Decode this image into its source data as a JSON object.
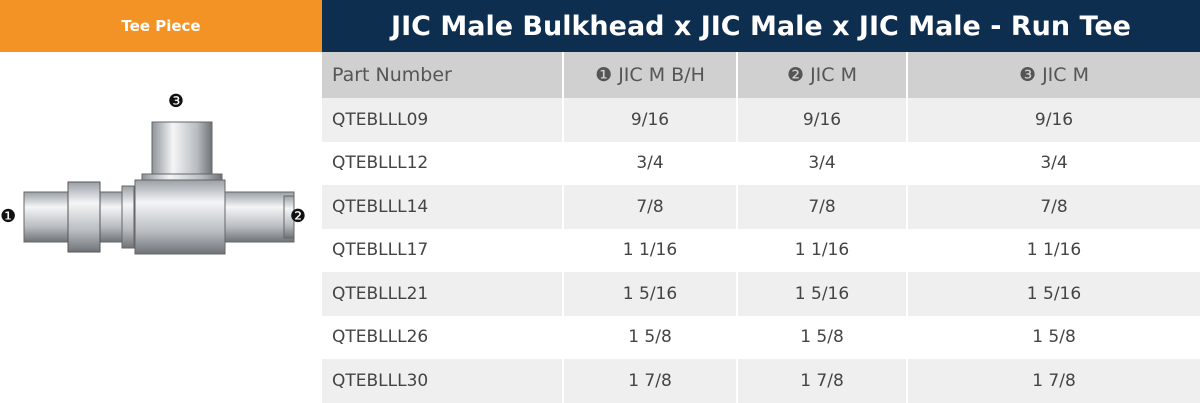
{
  "header": {
    "label": "Tee Piece",
    "title": "JIC Male Bulkhead x JIC Male x JIC Male - Run Tee"
  },
  "image": {
    "markers": [
      "❶",
      "❷",
      "❸"
    ]
  },
  "table": {
    "columns": [
      "Part Number",
      "❶ JIC M B/H",
      "❷ JIC M",
      "❸ JIC M"
    ],
    "rows": [
      [
        "QTEBLLL09",
        "9/16",
        "9/16",
        "9/16"
      ],
      [
        "QTEBLLL12",
        "3/4",
        "3/4",
        "3/4"
      ],
      [
        "QTEBLLL14",
        "7/8",
        "7/8",
        "7/8"
      ],
      [
        "QTEBLLL17",
        "1 1/16",
        "1 1/16",
        "1 1/16"
      ],
      [
        "QTEBLLL21",
        "1 5/16",
        "1 5/16",
        "1 5/16"
      ],
      [
        "QTEBLLL26",
        "1 5/8",
        "1 5/8",
        "1 5/8"
      ],
      [
        "QTEBLLL30",
        "1 7/8",
        "1 7/8",
        "1 7/8"
      ]
    ]
  }
}
